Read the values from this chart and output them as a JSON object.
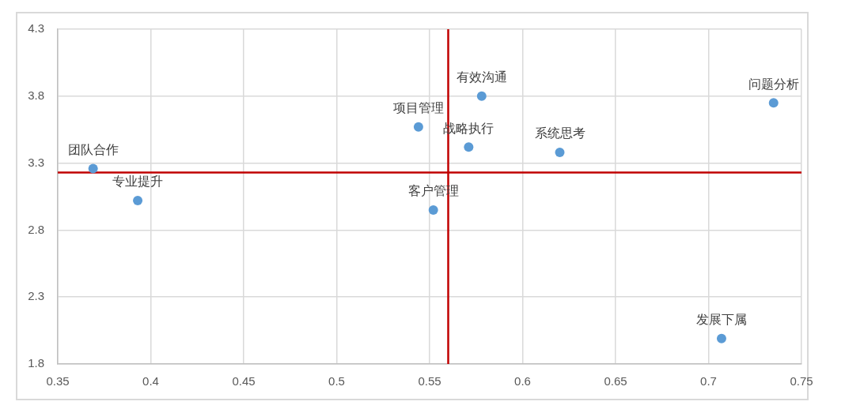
{
  "chart_data": {
    "type": "scatter",
    "xlim": [
      0.35,
      0.75
    ],
    "xticks": [
      0.35,
      0.4,
      0.45,
      0.5,
      0.55,
      0.6,
      0.65,
      0.7,
      0.75
    ],
    "ylim": [
      1.8,
      4.3
    ],
    "yticks": [
      1.8,
      2.3,
      2.8,
      3.3,
      3.8,
      4.3
    ],
    "grid": true,
    "legend": false,
    "marker": "circle",
    "series": [
      {
        "name": "团队合作",
        "color": "#5b9bd5",
        "x": [
          0.369
        ],
        "values": [
          3.26
        ]
      },
      {
        "name": "专业提升",
        "color": "#5b9bd5",
        "x": [
          0.393
        ],
        "values": [
          3.02
        ]
      },
      {
        "name": "项目管理",
        "color": "#5b9bd5",
        "x": [
          0.544
        ],
        "values": [
          3.57
        ]
      },
      {
        "name": "客户管理",
        "color": "#5b9bd5",
        "x": [
          0.552
        ],
        "values": [
          2.95
        ]
      },
      {
        "name": "战略执行",
        "color": "#5b9bd5",
        "x": [
          0.571
        ],
        "values": [
          3.42
        ]
      },
      {
        "name": "有效沟通",
        "color": "#5b9bd5",
        "x": [
          0.578
        ],
        "values": [
          3.8
        ]
      },
      {
        "name": "系统思考",
        "color": "#5b9bd5",
        "x": [
          0.62
        ],
        "values": [
          3.38
        ]
      },
      {
        "name": "发展下属",
        "color": "#5b9bd5",
        "x": [
          0.707
        ],
        "values": [
          1.99
        ]
      },
      {
        "name": "问题分析",
        "color": "#5b9bd5",
        "x": [
          0.735
        ],
        "values": [
          3.75
        ]
      }
    ],
    "ref_lines": [
      {
        "axis": "x",
        "value": 0.56,
        "color": "#c00000"
      },
      {
        "axis": "y",
        "value": 3.23,
        "color": "#c00000"
      }
    ]
  }
}
